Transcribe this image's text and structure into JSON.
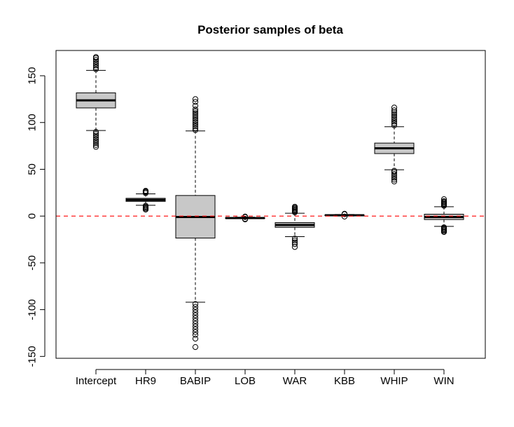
{
  "chart_data": {
    "type": "boxplot",
    "title": "Posterior samples of beta",
    "xlabel": "",
    "ylabel": "",
    "ylim": [
      -152,
      177
    ],
    "y_ticks": [
      -150,
      -100,
      -50,
      0,
      50,
      100,
      150
    ],
    "y_tick_labels": [
      "-150",
      "-100",
      "-50",
      "0",
      "50",
      "100",
      "150"
    ],
    "reference_line": {
      "y": 0,
      "style": "dashed",
      "color": "#ff0000"
    },
    "box_fill": "#c8c8c8",
    "categories": [
      "Intercept",
      "HR9",
      "BABIP",
      "LOB",
      "WAR",
      "KBB",
      "WHIP",
      "WIN"
    ],
    "boxes": [
      {
        "name": "Intercept",
        "q1": 115.6,
        "median": 123.7,
        "q3": 131.7,
        "whisker_low": 91.5,
        "whisker_high": 155.7,
        "outliers": [
          74,
          76,
          78,
          80,
          82,
          84,
          86,
          88,
          90,
          157,
          159,
          161,
          163,
          165,
          167,
          169,
          170
        ]
      },
      {
        "name": "HR9",
        "q1": 15.7,
        "median": 17.3,
        "q3": 19.0,
        "whisker_low": 11.6,
        "whisker_high": 23.7,
        "outliers": [
          7,
          8,
          9,
          10,
          11,
          24.5,
          25.5,
          26.5,
          27
        ]
      },
      {
        "name": "BABIP",
        "q1": -23.5,
        "median": -1.0,
        "q3": 22.0,
        "whisker_low": -92.0,
        "whisker_high": 91.0,
        "outliers": [
          -140,
          -131,
          -127,
          -124,
          -121,
          -118,
          -115,
          -112,
          -109,
          -106,
          -103,
          -100,
          -97,
          -94,
          92,
          94,
          96,
          98,
          100,
          102,
          104,
          106,
          108,
          110,
          112,
          114,
          118,
          122,
          125
        ]
      },
      {
        "name": "LOB",
        "q1": -2.5,
        "median": -2.1,
        "q3": -1.7,
        "whisker_low": -2.7,
        "whisker_high": -1.2,
        "outliers": [
          -3.5,
          -3.0,
          -1.0,
          -0.5
        ]
      },
      {
        "name": "WAR",
        "q1": -12.0,
        "median": -9.5,
        "q3": -7.0,
        "whisker_low": -22.0,
        "whisker_high": 3.0,
        "outliers": [
          -33,
          -30,
          -28,
          -26,
          -24,
          4,
          5,
          6,
          7,
          8,
          9,
          10
        ]
      },
      {
        "name": "KBB",
        "q1": 0.5,
        "median": 0.9,
        "q3": 1.3,
        "whisker_low": 0.0,
        "whisker_high": 1.7,
        "outliers": [
          -0.5,
          2.0,
          2.5
        ]
      },
      {
        "name": "WHIP",
        "q1": 66.8,
        "median": 72.5,
        "q3": 78.0,
        "whisker_low": 49.5,
        "whisker_high": 95.5,
        "outliers": [
          37,
          39,
          41,
          43,
          45,
          47,
          48.5,
          97,
          99,
          101,
          103,
          105,
          107,
          109,
          111,
          113,
          116
        ]
      },
      {
        "name": "WIN",
        "q1": -3.7,
        "median": -1.0,
        "q3": 2.0,
        "whisker_low": -11.0,
        "whisker_high": 10.0,
        "outliers": [
          -17,
          -16,
          -15,
          -14,
          -13,
          -12,
          11,
          12,
          13,
          14,
          15,
          16,
          18
        ]
      }
    ]
  }
}
